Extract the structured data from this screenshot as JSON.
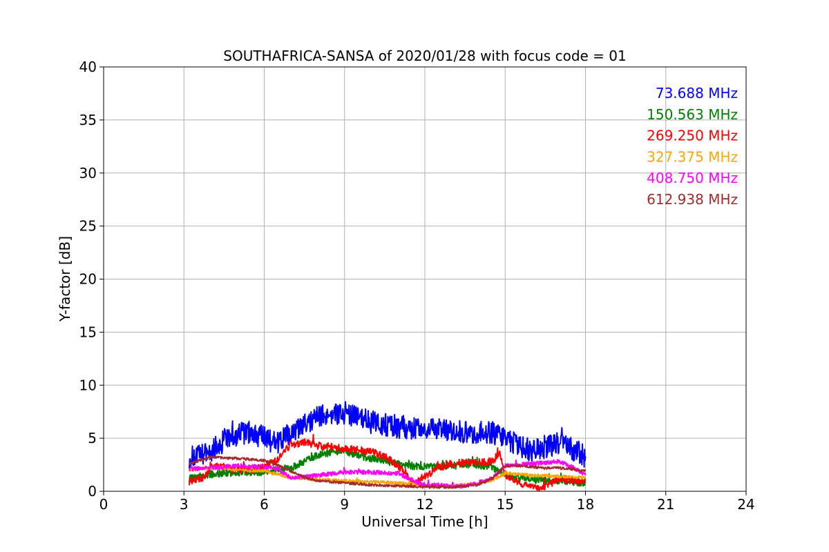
{
  "chart_data": {
    "type": "line",
    "title": "SOUTHAFRICA-SANSA of 2020/01/28 with focus code = 01",
    "xlabel": "Universal Time [h]",
    "ylabel": "Y-factor [dB]",
    "xlim": [
      0,
      24
    ],
    "ylim": [
      0,
      40
    ],
    "xticks": [
      0,
      3,
      6,
      9,
      12,
      15,
      18,
      21,
      24
    ],
    "yticks": [
      0,
      5,
      10,
      15,
      20,
      25,
      30,
      35,
      40
    ],
    "grid": true,
    "legend_position": "top-right",
    "series": [
      {
        "name": "73.688 MHz",
        "color": "#0000ff",
        "x": [
          3.2,
          3.6,
          4.0,
          4.5,
          5.0,
          5.5,
          6.0,
          6.5,
          7.0,
          7.5,
          8.0,
          8.5,
          9.0,
          9.5,
          10.0,
          10.5,
          11.0,
          11.5,
          12.0,
          12.5,
          13.0,
          13.5,
          14.0,
          14.5,
          15.0,
          15.5,
          16.0,
          16.5,
          17.0,
          17.5,
          18.0
        ],
        "y": [
          3.2,
          3.3,
          3.8,
          4.8,
          5.4,
          5.6,
          5.0,
          4.6,
          5.4,
          6.2,
          7.0,
          7.4,
          7.4,
          6.9,
          6.5,
          6.3,
          6.1,
          6.0,
          5.9,
          5.8,
          5.7,
          5.6,
          5.5,
          5.6,
          5.0,
          4.2,
          3.8,
          4.2,
          4.6,
          4.0,
          3.3
        ]
      },
      {
        "name": "150.563 MHz",
        "color": "#008000",
        "x": [
          3.2,
          4.0,
          5.0,
          6.0,
          7.0,
          7.5,
          8.0,
          8.5,
          9.0,
          9.5,
          10.0,
          10.5,
          11.0,
          11.5,
          12.0,
          12.5,
          13.0,
          13.5,
          14.0,
          14.5,
          15.0,
          15.5,
          16.0,
          16.5,
          17.0,
          17.5,
          18.0
        ],
        "y": [
          1.2,
          1.6,
          1.8,
          1.8,
          2.2,
          2.8,
          3.4,
          3.7,
          3.8,
          3.4,
          3.1,
          2.9,
          2.6,
          2.4,
          2.3,
          2.3,
          2.4,
          2.5,
          2.4,
          2.3,
          1.6,
          1.3,
          1.1,
          1.0,
          1.0,
          0.9,
          0.8
        ]
      },
      {
        "name": "269.250 MHz",
        "color": "#ff0000",
        "x": [
          3.2,
          3.8,
          4.0,
          4.5,
          5.0,
          5.5,
          6.0,
          6.5,
          6.8,
          7.0,
          7.5,
          8.0,
          8.5,
          9.0,
          9.5,
          10.0,
          10.5,
          11.0,
          11.3,
          11.6,
          12.0,
          12.5,
          13.0,
          13.5,
          14.0,
          14.5,
          14.8,
          15.0,
          15.5,
          16.0,
          16.5,
          17.0,
          17.5,
          18.0
        ],
        "y": [
          0.9,
          1.4,
          2.4,
          2.3,
          2.0,
          2.0,
          2.3,
          3.0,
          4.0,
          4.4,
          4.6,
          4.3,
          4.2,
          4.0,
          3.9,
          3.7,
          3.3,
          2.4,
          1.5,
          0.8,
          1.4,
          2.2,
          2.6,
          2.7,
          2.7,
          2.8,
          3.6,
          1.6,
          0.8,
          0.3,
          0.4,
          1.2,
          1.0,
          1.0
        ]
      },
      {
        "name": "327.375 MHz",
        "color": "#ffa500",
        "x": [
          3.2,
          4.0,
          5.0,
          6.0,
          6.5,
          7.0,
          8.0,
          9.0,
          10.0,
          11.0,
          12.0,
          13.0,
          14.0,
          14.5,
          15.0,
          15.5,
          16.0,
          17.0,
          18.0
        ],
        "y": [
          2.0,
          2.2,
          2.0,
          1.9,
          1.6,
          1.3,
          1.1,
          1.0,
          0.9,
          0.8,
          0.6,
          0.5,
          0.7,
          1.0,
          1.7,
          1.6,
          1.5,
          1.4,
          1.3
        ]
      },
      {
        "name": "408.750 MHz",
        "color": "#ff00ff",
        "x": [
          3.2,
          4.0,
          5.0,
          6.0,
          6.5,
          7.0,
          8.0,
          9.0,
          10.0,
          11.0,
          11.5,
          12.0,
          12.5,
          13.0,
          13.5,
          14.0,
          14.5,
          15.0,
          15.5,
          16.0,
          16.5,
          17.0,
          17.5,
          18.0
        ],
        "y": [
          2.1,
          2.2,
          2.4,
          2.3,
          2.1,
          1.2,
          1.5,
          1.8,
          1.8,
          1.7,
          1.1,
          0.6,
          0.6,
          0.5,
          0.5,
          0.8,
          1.2,
          2.4,
          2.5,
          2.6,
          2.7,
          2.8,
          2.3,
          1.5
        ]
      },
      {
        "name": "612.938 MHz",
        "color": "#a52a2a",
        "x": [
          3.2,
          4.0,
          5.0,
          6.0,
          6.5,
          7.0,
          7.5,
          8.0,
          9.0,
          10.0,
          11.0,
          12.0,
          13.0,
          14.0,
          14.5,
          15.0,
          15.5,
          16.0,
          16.5,
          17.0,
          17.5,
          18.0
        ],
        "y": [
          2.6,
          3.2,
          3.1,
          2.9,
          2.5,
          1.9,
          1.3,
          1.0,
          0.8,
          0.6,
          0.5,
          0.4,
          0.4,
          0.6,
          1.2,
          2.4,
          2.4,
          2.3,
          2.2,
          2.2,
          2.1,
          1.9
        ]
      }
    ]
  }
}
